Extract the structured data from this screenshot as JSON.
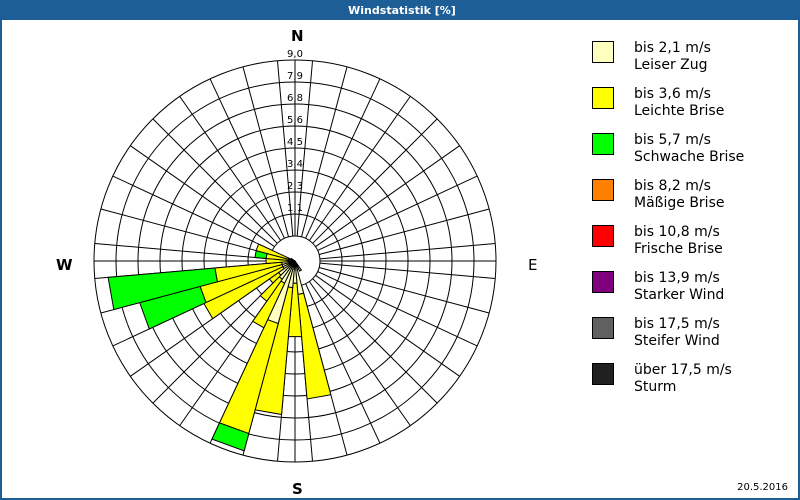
{
  "window": {
    "title": "Windstatistik [%]"
  },
  "footer": {
    "date": "20.5.2016"
  },
  "compass": {
    "n": "N",
    "e": "E",
    "s": "S",
    "w": "W"
  },
  "legend": [
    {
      "range": "bis 2,1 m/s",
      "name": "Leiser Zug",
      "color": "#ffffc0"
    },
    {
      "range": "bis 3,6 m/s",
      "name": "Leichte Brise",
      "color": "#ffff00"
    },
    {
      "range": "bis 5,7 m/s",
      "name": "Schwache Brise",
      "color": "#00ff00"
    },
    {
      "range": "bis 8,2 m/s",
      "name": "Mäßige Brise",
      "color": "#ff8000"
    },
    {
      "range": "bis 10,8 m/s",
      "name": "Frische Brise",
      "color": "#ff0000"
    },
    {
      "range": "bis 13,9 m/s",
      "name": "Starker Wind",
      "color": "#800080"
    },
    {
      "range": "bis 17,5 m/s",
      "name": "Steifer Wind",
      "color": "#606060"
    },
    {
      "range": "über 17,5 m/s",
      "name": "Sturm",
      "color": "#202020"
    }
  ],
  "chart_data": {
    "type": "wind-rose",
    "title": "Windstatistik [%]",
    "unit": "%",
    "sector_width_deg": 10,
    "radial_ticks": [
      "1,1",
      "2,3",
      "3,4",
      "4,5",
      "5,6",
      "6,8",
      "7,9",
      "9,0"
    ],
    "radial_max": 9.0,
    "series_names": [
      "bis 2,1 m/s",
      "bis 3,6 m/s",
      "bis 5,7 m/s"
    ],
    "sectors": [
      {
        "dir": 150,
        "cumulative": [
          0.5,
          0.5,
          0.5
        ]
      },
      {
        "dir": 160,
        "cumulative": [
          0.4,
          0.4,
          0.4
        ]
      },
      {
        "dir": 170,
        "cumulative": [
          1.5,
          6.2,
          6.2
        ]
      },
      {
        "dir": 180,
        "cumulative": [
          1.0,
          3.4,
          3.4
        ]
      },
      {
        "dir": 190,
        "cumulative": [
          1.2,
          6.9,
          6.9
        ]
      },
      {
        "dir": 200,
        "cumulative": [
          2.9,
          8.0,
          8.8
        ]
      },
      {
        "dir": 210,
        "cumulative": [
          1.1,
          3.3,
          3.3
        ]
      },
      {
        "dir": 220,
        "cumulative": [
          1.0,
          2.2,
          2.2
        ]
      },
      {
        "dir": 230,
        "cumulative": [
          0.9,
          1.4,
          1.4
        ]
      },
      {
        "dir": 240,
        "cumulative": [
          0.6,
          4.5,
          4.5
        ]
      },
      {
        "dir": 250,
        "cumulative": [
          0.6,
          4.4,
          7.2
        ]
      },
      {
        "dir": 260,
        "cumulative": [
          0.6,
          3.6,
          8.4
        ]
      },
      {
        "dir": 270,
        "cumulative": [
          0.3,
          1.3,
          1.3
        ]
      },
      {
        "dir": 280,
        "cumulative": [
          0.3,
          1.3,
          1.8
        ]
      },
      {
        "dir": 290,
        "cumulative": [
          0.3,
          1.8,
          1.8
        ]
      },
      {
        "dir": 300,
        "cumulative": [
          0.2,
          0.2,
          0.2
        ]
      }
    ]
  }
}
